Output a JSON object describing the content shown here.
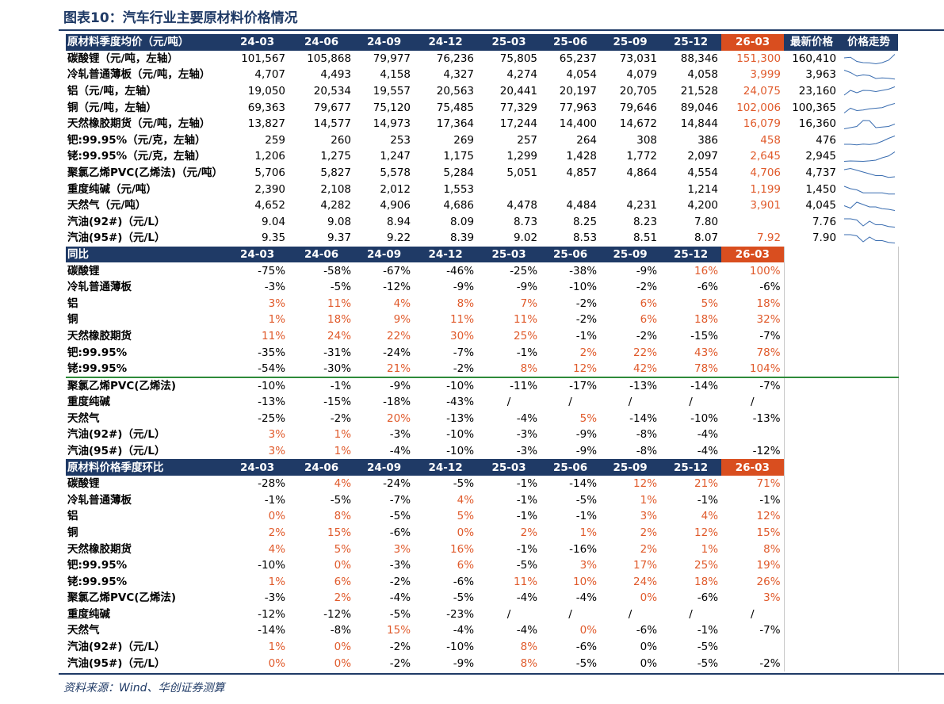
{
  "title": "图表10：汽车行业主要原材料价格情况",
  "source": "资料来源：Wind、华创证券测算",
  "colors": {
    "header_bg": "#1f3a66",
    "current_bg": "#d94e1f",
    "highlight_text": "#e05a2b",
    "divider_green": "#2e8b3a"
  },
  "periods": [
    "24-03",
    "24-06",
    "24-09",
    "24-12",
    "25-03",
    "25-06",
    "25-09",
    "25-12",
    "26-03"
  ],
  "sections": [
    {
      "header": "原材料季度均价（元/吨）",
      "extra_headers": [
        "最新价格",
        "价格走势"
      ],
      "rows": [
        {
          "name": "碳酸锂（元/吨，左轴）",
          "values": [
            "101,567",
            "105,868",
            "79,977",
            "76,236",
            "75,805",
            "65,237",
            "73,031",
            "88,346",
            "151,300"
          ],
          "latest": "160,410"
        },
        {
          "name": "冷轧普通薄板（元/吨，左轴）",
          "values": [
            "4,707",
            "4,493",
            "4,158",
            "4,327",
            "4,274",
            "4,054",
            "4,079",
            "4,058",
            "3,999"
          ],
          "latest": "3,963"
        },
        {
          "name": "铝（元/吨，左轴）",
          "values": [
            "19,050",
            "20,534",
            "19,557",
            "20,563",
            "20,441",
            "20,197",
            "20,705",
            "21,528",
            "24,075"
          ],
          "latest": "23,160"
        },
        {
          "name": "铜（元/吨，左轴）",
          "values": [
            "69,363",
            "79,677",
            "75,120",
            "75,485",
            "77,329",
            "77,963",
            "79,646",
            "89,046",
            "102,006"
          ],
          "latest": "100,365"
        },
        {
          "name": "天然橡胶期货（元/吨，左轴）",
          "values": [
            "13,827",
            "14,577",
            "14,973",
            "17,364",
            "17,244",
            "14,400",
            "14,672",
            "14,844",
            "16,079"
          ],
          "latest": "16,360"
        },
        {
          "name": "钯:99.95%（元/克，左轴）",
          "values": [
            "259",
            "260",
            "253",
            "269",
            "257",
            "264",
            "308",
            "386",
            "458"
          ],
          "latest": "476"
        },
        {
          "name": "铑:99.95%（元/克，左轴）",
          "values": [
            "1,206",
            "1,275",
            "1,247",
            "1,175",
            "1,299",
            "1,428",
            "1,772",
            "2,097",
            "2,645"
          ],
          "latest": "2,945"
        },
        {
          "name": "聚氯乙烯PVC(乙烯法)（元/吨）",
          "values": [
            "5,706",
            "5,827",
            "5,578",
            "5,284",
            "5,051",
            "4,857",
            "4,864",
            "4,554",
            "4,706"
          ],
          "latest": "4,737"
        },
        {
          "name": "重度纯碱（元/吨）",
          "values": [
            "2,390",
            "2,108",
            "2,012",
            "1,553",
            "",
            "",
            "",
            "1,214",
            "1,199"
          ],
          "latest": "1,450"
        },
        {
          "name": "天然气（元/吨）",
          "values": [
            "4,652",
            "4,282",
            "4,906",
            "4,686",
            "4,478",
            "4,484",
            "4,231",
            "4,200",
            "3,901"
          ],
          "latest": "4,045"
        },
        {
          "name": "汽油(92#)（元/L）",
          "values": [
            "9.04",
            "9.08",
            "8.94",
            "8.09",
            "8.73",
            "8.25",
            "8.23",
            "7.80",
            ""
          ],
          "latest": "7.76"
        },
        {
          "name": "汽油(95#)（元/L）",
          "values": [
            "9.35",
            "9.37",
            "9.22",
            "8.39",
            "9.02",
            "8.53",
            "8.51",
            "8.07",
            "7.92"
          ],
          "latest": "7.90"
        }
      ]
    },
    {
      "header": "同比",
      "rows": [
        {
          "name": "碳酸锂",
          "values": [
            "-75%",
            "-58%",
            "-67%",
            "-46%",
            "-25%",
            "-38%",
            "-9%",
            "16%",
            "100%"
          ]
        },
        {
          "name": "冷轧普通薄板",
          "values": [
            "-3%",
            "-5%",
            "-12%",
            "-9%",
            "-9%",
            "-10%",
            "-2%",
            "-6%",
            "-6%"
          ]
        },
        {
          "name": "铝",
          "values": [
            "3%",
            "11%",
            "4%",
            "8%",
            "7%",
            "-2%",
            "6%",
            "5%",
            "18%"
          ]
        },
        {
          "name": "铜",
          "values": [
            "1%",
            "18%",
            "9%",
            "11%",
            "11%",
            "-2%",
            "6%",
            "18%",
            "32%"
          ]
        },
        {
          "name": "天然橡胶期货",
          "values": [
            "11%",
            "24%",
            "22%",
            "30%",
            "25%",
            "-1%",
            "-2%",
            "-15%",
            "-7%"
          ]
        },
        {
          "name": "钯:99.95%",
          "values": [
            "-35%",
            "-31%",
            "-24%",
            "-7%",
            "-1%",
            "2%",
            "22%",
            "43%",
            "78%"
          ]
        },
        {
          "name": "铑:99.95%",
          "values": [
            "-54%",
            "-30%",
            "21%",
            "-2%",
            "8%",
            "12%",
            "42%",
            "78%",
            "104%"
          ]
        },
        {
          "name": "聚氯乙烯PVC(乙烯法)",
          "values": [
            "-10%",
            "-1%",
            "-9%",
            "-10%",
            "-11%",
            "-17%",
            "-13%",
            "-14%",
            "-7%"
          ]
        },
        {
          "name": "重度纯碱",
          "values": [
            "-13%",
            "-15%",
            "-18%",
            "-43%",
            "/",
            "/",
            "/",
            "/",
            "/"
          ]
        },
        {
          "name": "天然气",
          "values": [
            "-25%",
            "-2%",
            "20%",
            "-13%",
            "-4%",
            "5%",
            "-14%",
            "-10%",
            "-13%"
          ]
        },
        {
          "name": "汽油(92#)（元/L）",
          "values": [
            "3%",
            "1%",
            "-3%",
            "-10%",
            "-3%",
            "-9%",
            "-8%",
            "-4%",
            ""
          ]
        },
        {
          "name": "汽油(95#)（元/L）",
          "values": [
            "3%",
            "1%",
            "-4%",
            "-10%",
            "-3%",
            "-9%",
            "-8%",
            "-4%",
            "-12%"
          ]
        }
      ]
    },
    {
      "header": "原材料价格季度环比",
      "rows": [
        {
          "name": "碳酸锂",
          "values": [
            "-28%",
            "4%",
            "-24%",
            "-5%",
            "-1%",
            "-14%",
            "12%",
            "21%",
            "71%"
          ]
        },
        {
          "name": "冷轧普通薄板",
          "values": [
            "-1%",
            "-5%",
            "-7%",
            "4%",
            "-1%",
            "-5%",
            "1%",
            "-1%",
            "-1%"
          ]
        },
        {
          "name": "铝",
          "values": [
            "0%",
            "8%",
            "-5%",
            "5%",
            "-1%",
            "-1%",
            "3%",
            "4%",
            "12%"
          ]
        },
        {
          "name": "铜",
          "values": [
            "2%",
            "15%",
            "-6%",
            "0%",
            "2%",
            "1%",
            "2%",
            "12%",
            "15%"
          ]
        },
        {
          "name": "天然橡胶期货",
          "values": [
            "4%",
            "5%",
            "3%",
            "16%",
            "-1%",
            "-16%",
            "2%",
            "1%",
            "8%"
          ]
        },
        {
          "name": "钯:99.95%",
          "values": [
            "-10%",
            "0%",
            "-3%",
            "6%",
            "-5%",
            "3%",
            "17%",
            "25%",
            "19%"
          ]
        },
        {
          "name": "铑:99.95%",
          "values": [
            "1%",
            "6%",
            "-2%",
            "-6%",
            "11%",
            "10%",
            "24%",
            "18%",
            "26%"
          ]
        },
        {
          "name": "聚氯乙烯PVC(乙烯法)",
          "values": [
            "-3%",
            "2%",
            "-4%",
            "-5%",
            "-4%",
            "-4%",
            "0%",
            "-6%",
            "3%"
          ]
        },
        {
          "name": "重度纯碱",
          "values": [
            "-12%",
            "-12%",
            "-5%",
            "-23%",
            "/",
            "/",
            "/",
            "/",
            "/"
          ]
        },
        {
          "name": "天然气",
          "values": [
            "-14%",
            "-8%",
            "15%",
            "-4%",
            "-4%",
            "0%",
            "-6%",
            "-1%",
            "-7%"
          ]
        },
        {
          "name": "汽油(92#)（元/L）",
          "values": [
            "1%",
            "0%",
            "-2%",
            "-10%",
            "8%",
            "-6%",
            "0%",
            "-5%",
            ""
          ]
        },
        {
          "name": "汽油(95#)（元/L）",
          "values": [
            "0%",
            "0%",
            "-2%",
            "-9%",
            "8%",
            "-5%",
            "0%",
            "-5%",
            "-2%"
          ]
        }
      ]
    }
  ]
}
